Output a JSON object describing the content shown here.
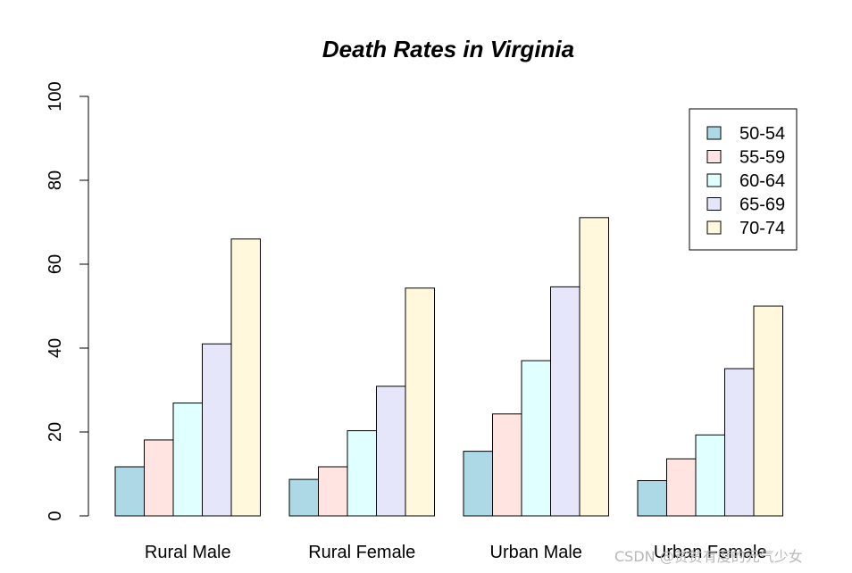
{
  "chart_data": {
    "type": "bar",
    "title": "Death Rates in Virginia",
    "xlabel": "",
    "ylabel": "",
    "ylim": [
      0,
      100
    ],
    "yticks": [
      0,
      20,
      40,
      60,
      80,
      100
    ],
    "categories": [
      "Rural Male",
      "Rural Female",
      "Urban Male",
      "Urban Female"
    ],
    "series": [
      {
        "name": "50-54",
        "color": "#add8e6",
        "values": [
          11.7,
          8.7,
          15.4,
          8.4
        ]
      },
      {
        "name": "55-59",
        "color": "#ffe4e1",
        "values": [
          18.1,
          11.7,
          24.3,
          13.6
        ]
      },
      {
        "name": "60-64",
        "color": "#e0ffff",
        "values": [
          26.9,
          20.3,
          37.0,
          19.3
        ]
      },
      {
        "name": "65-69",
        "color": "#e6e6fa",
        "values": [
          41.0,
          30.9,
          54.6,
          35.1
        ]
      },
      {
        "name": "70-74",
        "color": "#fff8dc",
        "values": [
          66.0,
          54.3,
          71.1,
          50.0
        ]
      }
    ],
    "legend_position": "top-right"
  },
  "watermark": "CSDN @贫贫有度的元气少女"
}
